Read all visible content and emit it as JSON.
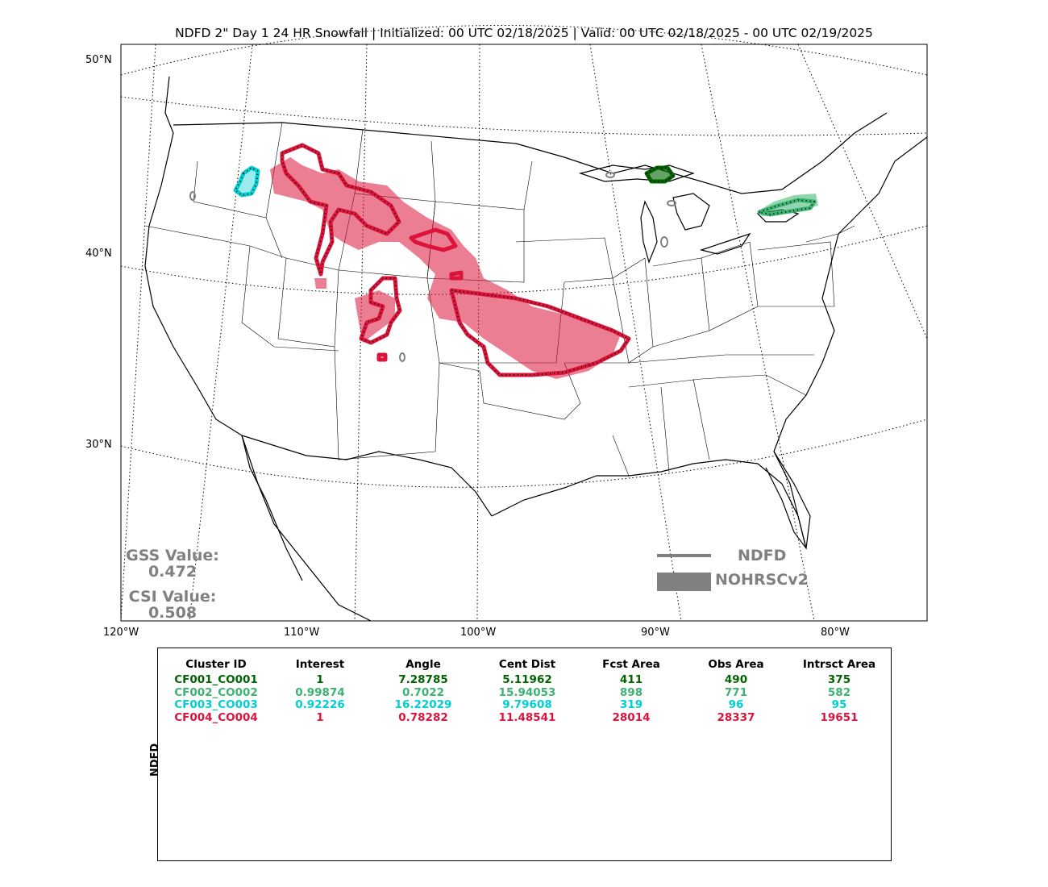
{
  "title": "NDFD 2\" Day 1 24 HR Snowfall | Initialized: 00 UTC 02/18/2025 | Valid: 00 UTC 02/18/2025 - 00 UTC 02/19/2025",
  "lat_labels": [
    "50°N",
    "40°N",
    "30°N"
  ],
  "lon_labels": [
    "120°W",
    "110°W",
    "100°W",
    "90°W",
    "80°W"
  ],
  "stats": {
    "gss_label": "GSS Value:",
    "gss_value": "0.472",
    "csi_label": "CSI Value:",
    "csi_value": "0.508"
  },
  "legend": {
    "line_label": "NDFD",
    "fill_label": "NOHRSCv2",
    "color": "#808080"
  },
  "table": {
    "side_label": "NDFD",
    "headers": [
      "Cluster ID",
      "Interest",
      "Angle",
      "Cent Dist",
      "Fcst Area",
      "Obs Area",
      "Intrsct Area"
    ],
    "rows": [
      {
        "color": "#006400",
        "cells": [
          "CF001_CO001",
          "1",
          "7.28785",
          "5.11962",
          "411",
          "490",
          "375"
        ]
      },
      {
        "color": "#3cb371",
        "cells": [
          "CF002_CO002",
          "0.99874",
          "0.7022",
          "15.94053",
          "898",
          "771",
          "582"
        ]
      },
      {
        "color": "#00ced1",
        "cells": [
          "CF003_CO003",
          "0.92226",
          "16.22029",
          "9.79608",
          "319",
          "96",
          "95"
        ]
      },
      {
        "color": "#dc143c",
        "cells": [
          "CF004_CO004",
          "1",
          "0.78282",
          "11.48541",
          "28014",
          "28337",
          "19651"
        ]
      }
    ]
  },
  "colors": {
    "cluster1": "#006400",
    "cluster2": "#3cb371",
    "cluster3": "#00ced1",
    "cluster4": "#dc143c"
  }
}
